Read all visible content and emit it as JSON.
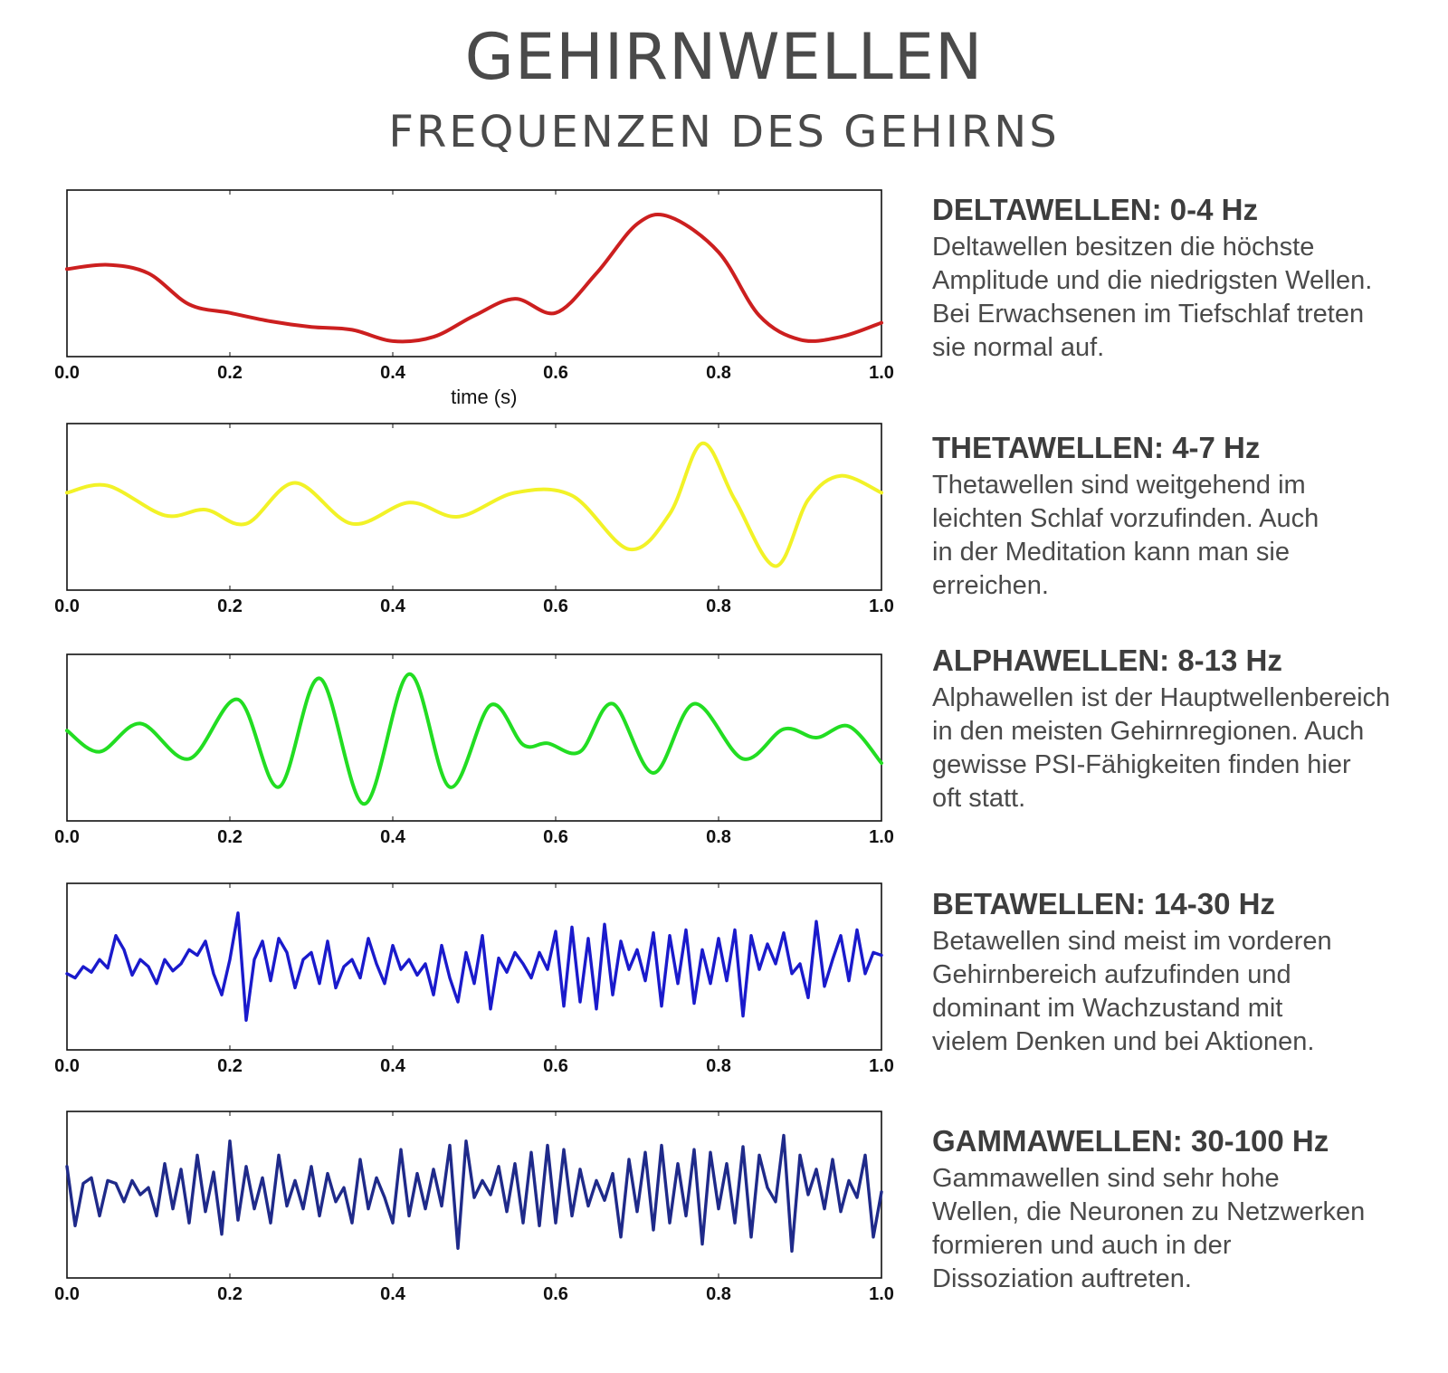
{
  "header": {
    "title": "GEHIRNWELLEN",
    "subtitle": "FREQUENZEN DES GEHIRNS"
  },
  "chart_data": [
    {
      "type": "line",
      "color": "#cc1f1f",
      "xlabel": "time (s)",
      "xlim": [
        0,
        1
      ],
      "xticks": [
        "0.0",
        "0.2",
        "0.4",
        "0.6",
        "0.8",
        "1.0"
      ],
      "x": [
        0.0,
        0.05,
        0.1,
        0.15,
        0.2,
        0.25,
        0.3,
        0.35,
        0.4,
        0.45,
        0.5,
        0.55,
        0.6,
        0.65,
        0.7,
        0.74,
        0.8,
        0.85,
        0.9,
        0.95,
        1.0
      ],
      "values": [
        0.53,
        0.56,
        0.5,
        0.28,
        0.22,
        0.16,
        0.12,
        0.1,
        0.02,
        0.05,
        0.2,
        0.32,
        0.22,
        0.5,
        0.85,
        0.9,
        0.65,
        0.2,
        0.03,
        0.05,
        0.15
      ]
    },
    {
      "type": "line",
      "color": "#f2f227",
      "xlabel": "",
      "xlim": [
        0,
        1
      ],
      "xticks": [
        "0.0",
        "0.2",
        "0.4",
        "0.6",
        "0.8",
        "1.0"
      ],
      "x": [
        0.0,
        0.05,
        0.12,
        0.17,
        0.22,
        0.28,
        0.35,
        0.42,
        0.48,
        0.55,
        0.62,
        0.69,
        0.74,
        0.78,
        0.82,
        0.87,
        0.91,
        0.95,
        1.0
      ],
      "values": [
        0.6,
        0.65,
        0.44,
        0.48,
        0.38,
        0.67,
        0.38,
        0.53,
        0.43,
        0.6,
        0.58,
        0.2,
        0.45,
        0.95,
        0.55,
        0.08,
        0.55,
        0.72,
        0.6
      ]
    },
    {
      "type": "line",
      "color": "#22dd22",
      "xlabel": "",
      "xlim": [
        0,
        1
      ],
      "xticks": [
        "0.0",
        "0.2",
        "0.4",
        "0.6",
        "0.8",
        "1.0"
      ],
      "x": [
        0.0,
        0.04,
        0.09,
        0.15,
        0.21,
        0.26,
        0.31,
        0.365,
        0.42,
        0.47,
        0.52,
        0.56,
        0.59,
        0.63,
        0.67,
        0.72,
        0.77,
        0.83,
        0.88,
        0.92,
        0.96,
        1.0
      ],
      "values": [
        0.55,
        0.4,
        0.6,
        0.35,
        0.77,
        0.15,
        0.92,
        0.03,
        0.95,
        0.15,
        0.73,
        0.45,
        0.46,
        0.4,
        0.74,
        0.25,
        0.74,
        0.35,
        0.56,
        0.5,
        0.58,
        0.32
      ]
    },
    {
      "type": "line",
      "color": "#1a1acc",
      "xlabel": "",
      "xlim": [
        0,
        1
      ],
      "xticks": [
        "0.0",
        "0.2",
        "0.4",
        "0.6",
        "0.8",
        "1.0"
      ],
      "x": [
        0.0,
        0.01,
        0.02,
        0.03,
        0.04,
        0.05,
        0.06,
        0.07,
        0.08,
        0.09,
        0.1,
        0.11,
        0.12,
        0.13,
        0.14,
        0.15,
        0.16,
        0.17,
        0.18,
        0.19,
        0.2,
        0.21,
        0.22,
        0.23,
        0.24,
        0.25,
        0.26,
        0.27,
        0.28,
        0.29,
        0.3,
        0.31,
        0.32,
        0.33,
        0.34,
        0.35,
        0.36,
        0.37,
        0.38,
        0.39,
        0.4,
        0.41,
        0.42,
        0.43,
        0.44,
        0.45,
        0.46,
        0.47,
        0.48,
        0.49,
        0.5,
        0.51,
        0.52,
        0.53,
        0.54,
        0.55,
        0.56,
        0.57,
        0.58,
        0.59,
        0.6,
        0.61,
        0.62,
        0.63,
        0.64,
        0.65,
        0.66,
        0.67,
        0.68,
        0.69,
        0.7,
        0.71,
        0.72,
        0.73,
        0.74,
        0.75,
        0.76,
        0.77,
        0.78,
        0.79,
        0.8,
        0.81,
        0.82,
        0.83,
        0.84,
        0.85,
        0.86,
        0.87,
        0.88,
        0.89,
        0.9,
        0.91,
        0.92,
        0.93,
        0.94,
        0.95,
        0.96,
        0.97,
        0.98,
        0.99,
        1.0
      ],
      "values": [
        0.45,
        0.42,
        0.5,
        0.46,
        0.55,
        0.49,
        0.72,
        0.62,
        0.44,
        0.55,
        0.5,
        0.38,
        0.55,
        0.47,
        0.52,
        0.62,
        0.58,
        0.68,
        0.45,
        0.3,
        0.55,
        0.88,
        0.12,
        0.55,
        0.68,
        0.4,
        0.7,
        0.6,
        0.35,
        0.55,
        0.6,
        0.38,
        0.68,
        0.35,
        0.5,
        0.55,
        0.42,
        0.7,
        0.52,
        0.38,
        0.65,
        0.48,
        0.55,
        0.44,
        0.52,
        0.3,
        0.65,
        0.42,
        0.25,
        0.6,
        0.38,
        0.72,
        0.2,
        0.56,
        0.46,
        0.6,
        0.52,
        0.42,
        0.6,
        0.48,
        0.75,
        0.22,
        0.78,
        0.25,
        0.7,
        0.2,
        0.8,
        0.3,
        0.68,
        0.48,
        0.62,
        0.4,
        0.74,
        0.22,
        0.72,
        0.38,
        0.76,
        0.24,
        0.62,
        0.38,
        0.7,
        0.4,
        0.76,
        0.15,
        0.72,
        0.48,
        0.66,
        0.52,
        0.74,
        0.45,
        0.52,
        0.28,
        0.82,
        0.36,
        0.55,
        0.72,
        0.4,
        0.76,
        0.45,
        0.6,
        0.58
      ]
    },
    {
      "type": "line",
      "color": "#1f2a8a",
      "xlabel": "",
      "xlim": [
        0,
        1
      ],
      "xticks": [
        "0.0",
        "0.2",
        "0.4",
        "0.6",
        "0.8",
        "1.0"
      ],
      "x": [
        0.0,
        0.01,
        0.02,
        0.03,
        0.04,
        0.05,
        0.06,
        0.07,
        0.08,
        0.09,
        0.1,
        0.11,
        0.12,
        0.13,
        0.14,
        0.15,
        0.16,
        0.17,
        0.18,
        0.19,
        0.2,
        0.21,
        0.22,
        0.23,
        0.24,
        0.25,
        0.26,
        0.27,
        0.28,
        0.29,
        0.3,
        0.31,
        0.32,
        0.33,
        0.34,
        0.35,
        0.36,
        0.37,
        0.38,
        0.39,
        0.4,
        0.41,
        0.42,
        0.43,
        0.44,
        0.45,
        0.46,
        0.47,
        0.48,
        0.49,
        0.5,
        0.51,
        0.52,
        0.53,
        0.54,
        0.55,
        0.56,
        0.57,
        0.58,
        0.59,
        0.6,
        0.61,
        0.62,
        0.63,
        0.64,
        0.65,
        0.66,
        0.67,
        0.68,
        0.69,
        0.7,
        0.71,
        0.72,
        0.73,
        0.74,
        0.75,
        0.76,
        0.77,
        0.78,
        0.79,
        0.8,
        0.81,
        0.82,
        0.83,
        0.84,
        0.85,
        0.86,
        0.87,
        0.88,
        0.89,
        0.9,
        0.91,
        0.92,
        0.93,
        0.94,
        0.95,
        0.96,
        0.97,
        0.98,
        0.99,
        1.0
      ],
      "values": [
        0.7,
        0.28,
        0.58,
        0.62,
        0.35,
        0.6,
        0.58,
        0.45,
        0.6,
        0.5,
        0.55,
        0.35,
        0.72,
        0.4,
        0.68,
        0.3,
        0.78,
        0.38,
        0.66,
        0.22,
        0.88,
        0.32,
        0.7,
        0.4,
        0.62,
        0.3,
        0.78,
        0.42,
        0.6,
        0.4,
        0.7,
        0.35,
        0.65,
        0.45,
        0.55,
        0.3,
        0.75,
        0.4,
        0.62,
        0.48,
        0.3,
        0.82,
        0.35,
        0.65,
        0.4,
        0.68,
        0.42,
        0.85,
        0.12,
        0.88,
        0.48,
        0.6,
        0.5,
        0.7,
        0.38,
        0.72,
        0.3,
        0.8,
        0.28,
        0.85,
        0.3,
        0.82,
        0.35,
        0.68,
        0.42,
        0.6,
        0.46,
        0.65,
        0.2,
        0.75,
        0.38,
        0.8,
        0.25,
        0.85,
        0.3,
        0.72,
        0.35,
        0.82,
        0.15,
        0.8,
        0.4,
        0.72,
        0.3,
        0.84,
        0.2,
        0.78,
        0.55,
        0.45,
        0.92,
        0.1,
        0.78,
        0.5,
        0.68,
        0.4,
        0.75,
        0.38,
        0.6,
        0.48,
        0.78,
        0.2,
        0.52
      ]
    }
  ],
  "descriptions": [
    {
      "heading": "DELTAWELLEN: 0-4 Hz",
      "lines": [
        "Deltawellen besitzen die höchste",
        "Amplitude und die niedrigsten Wellen.",
        "Bei Erwachsenen im Tiefschlaf treten",
        "sie normal auf."
      ]
    },
    {
      "heading": "THETAWELLEN: 4-7 Hz",
      "lines": [
        "Thetawellen sind weitgehend im",
        "leichten Schlaf vorzufinden. Auch",
        "in der Meditation kann man sie",
        "erreichen."
      ]
    },
    {
      "heading": "ALPHAWELLEN: 8-13 Hz",
      "lines": [
        "Alphawellen ist der Hauptwellenbereich",
        "in den meisten Gehirnregionen. Auch",
        "gewisse PSI-Fähigkeiten finden hier",
        "oft statt."
      ]
    },
    {
      "heading": "BETAWELLEN: 14-30 Hz",
      "lines": [
        "Betawellen sind meist im vorderen",
        "Gehirnbereich aufzufinden und",
        "dominant im Wachzustand mit",
        "vielem Denken und bei Aktionen."
      ]
    },
    {
      "heading": "GAMMAWELLEN: 30-100 Hz",
      "lines": [
        "Gammawellen sind sehr hohe",
        "Wellen, die Neuronen zu Netzwerken",
        "formieren und auch in der",
        "Dissoziation auftreten."
      ]
    }
  ]
}
